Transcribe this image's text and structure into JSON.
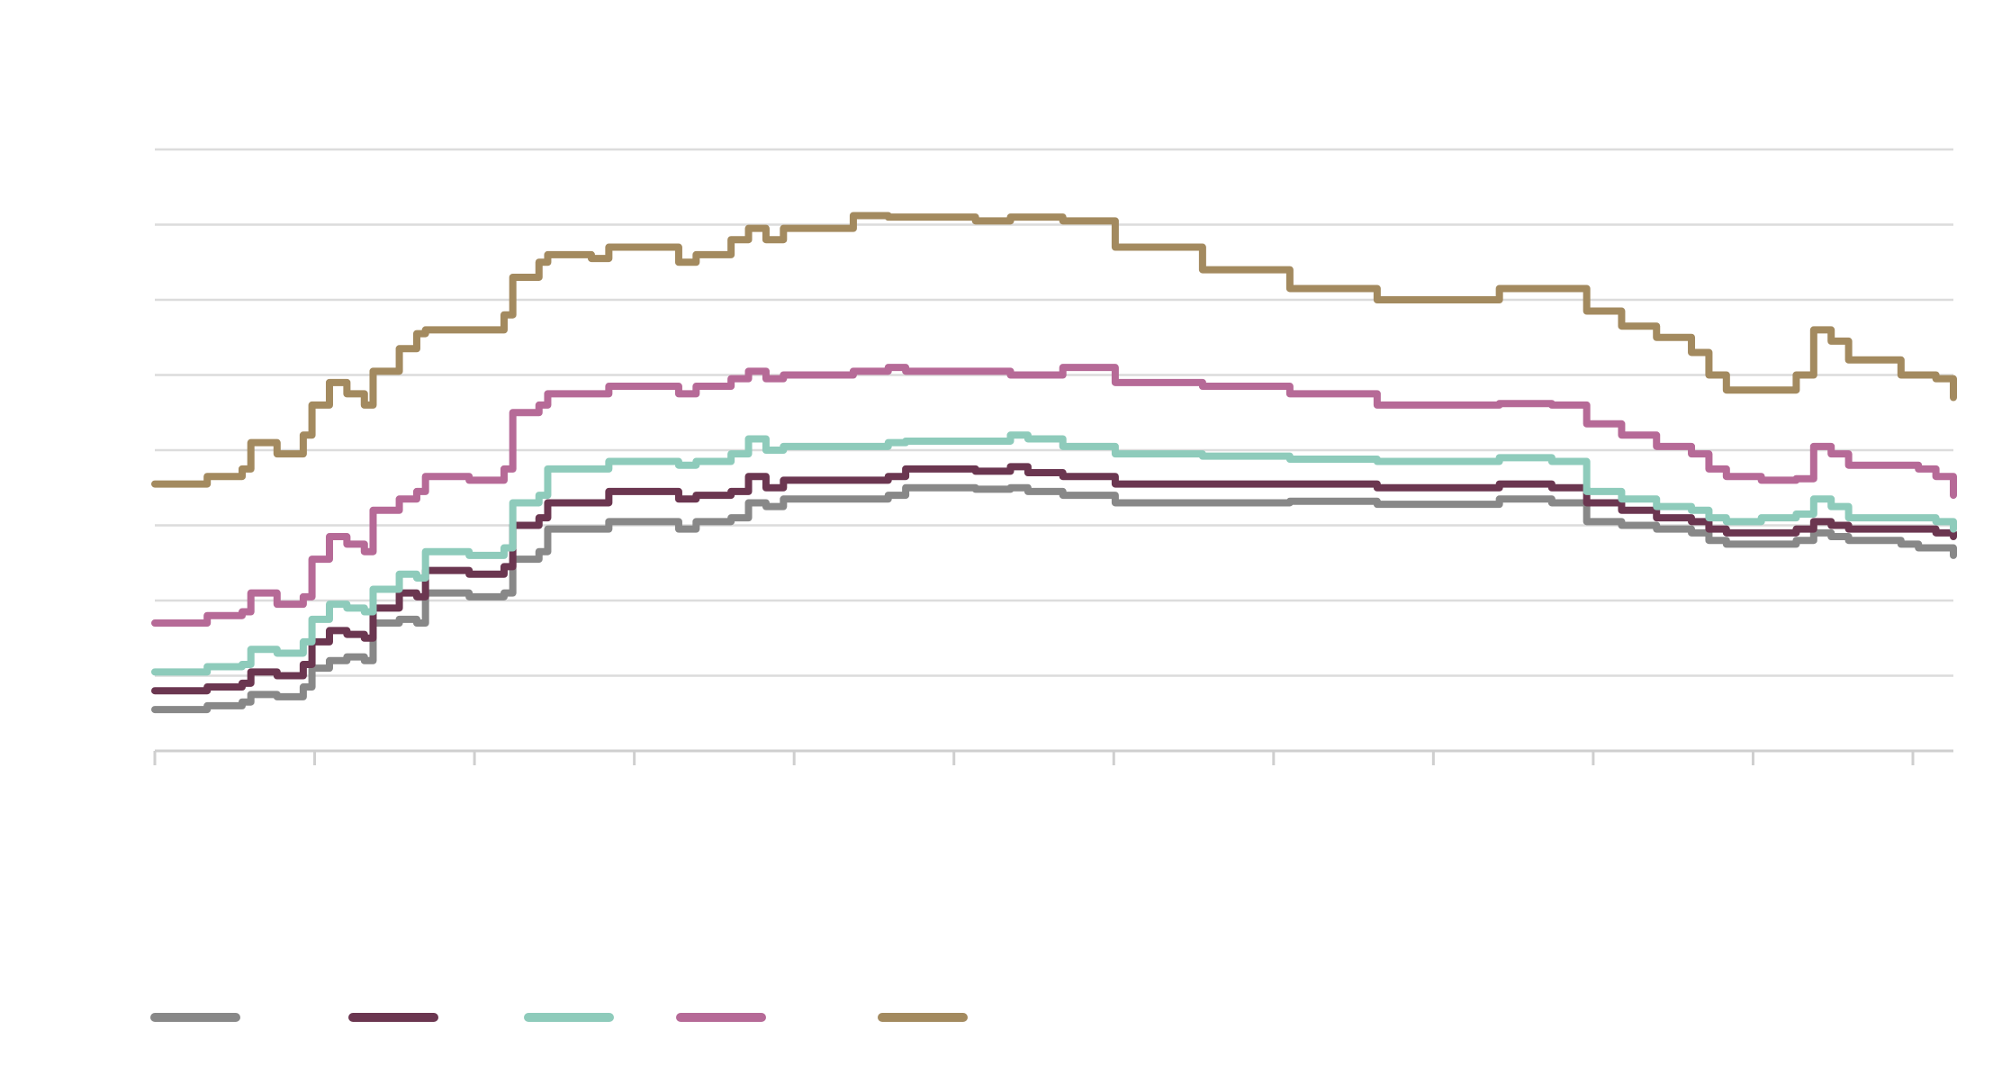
{
  "chart_data": {
    "type": "line",
    "title": "",
    "xlabel": "",
    "ylabel": "",
    "ylim": [
      0,
      8
    ],
    "y_ticks": [
      0,
      1,
      2,
      3,
      4,
      5,
      6,
      7,
      8
    ],
    "x_tick_count": 12,
    "grid": true,
    "legend_position": "bottom-left",
    "series": [
      {
        "color": "#888888",
        "values": [
          [
            0,
            0.55
          ],
          [
            2,
            0.55
          ],
          [
            3,
            0.6
          ],
          [
            5,
            0.65
          ],
          [
            5.5,
            0.75
          ],
          [
            7,
            0.72
          ],
          [
            8.5,
            0.85
          ],
          [
            9,
            1.1
          ],
          [
            10,
            1.2
          ],
          [
            11,
            1.25
          ],
          [
            12,
            1.2
          ],
          [
            12.5,
            1.7
          ],
          [
            14,
            1.75
          ],
          [
            15,
            1.7
          ],
          [
            15.5,
            2.1
          ],
          [
            18,
            2.05
          ],
          [
            19,
            2.05
          ],
          [
            20,
            2.1
          ],
          [
            20.5,
            2.55
          ],
          [
            22,
            2.65
          ],
          [
            22.5,
            2.95
          ],
          [
            25,
            2.95
          ],
          [
            26,
            3.05
          ],
          [
            29,
            3.05
          ],
          [
            30,
            2.95
          ],
          [
            31,
            3.05
          ],
          [
            33,
            3.1
          ],
          [
            34,
            3.3
          ],
          [
            35,
            3.25
          ],
          [
            36,
            3.35
          ],
          [
            40,
            3.35
          ],
          [
            42,
            3.4
          ],
          [
            43,
            3.5
          ],
          [
            47,
            3.48
          ],
          [
            49,
            3.5
          ],
          [
            50,
            3.45
          ],
          [
            52,
            3.4
          ],
          [
            55,
            3.3
          ],
          [
            60,
            3.3
          ],
          [
            65,
            3.32
          ],
          [
            70,
            3.28
          ],
          [
            74,
            3.28
          ],
          [
            77,
            3.35
          ],
          [
            80,
            3.3
          ],
          [
            82,
            3.05
          ],
          [
            84,
            3.0
          ],
          [
            86,
            2.95
          ],
          [
            88,
            2.9
          ],
          [
            89,
            2.8
          ],
          [
            90,
            2.75
          ],
          [
            92,
            2.75
          ],
          [
            94,
            2.8
          ],
          [
            95,
            2.9
          ],
          [
            96,
            2.85
          ],
          [
            97,
            2.8
          ],
          [
            100,
            2.75
          ],
          [
            101,
            2.7
          ],
          [
            102,
            2.7
          ],
          [
            103,
            2.6
          ]
        ]
      },
      {
        "color": "#6b3650",
        "values": [
          [
            0,
            0.8
          ],
          [
            2,
            0.8
          ],
          [
            3,
            0.85
          ],
          [
            5,
            0.9
          ],
          [
            5.5,
            1.05
          ],
          [
            7,
            1.0
          ],
          [
            8.5,
            1.15
          ],
          [
            9,
            1.45
          ],
          [
            10,
            1.6
          ],
          [
            11,
            1.55
          ],
          [
            12,
            1.5
          ],
          [
            12.5,
            1.9
          ],
          [
            14,
            2.1
          ],
          [
            15,
            2.05
          ],
          [
            15.5,
            2.4
          ],
          [
            18,
            2.35
          ],
          [
            19,
            2.35
          ],
          [
            20,
            2.45
          ],
          [
            20.5,
            3.0
          ],
          [
            22,
            3.1
          ],
          [
            22.5,
            3.3
          ],
          [
            25,
            3.3
          ],
          [
            26,
            3.45
          ],
          [
            29,
            3.45
          ],
          [
            30,
            3.35
          ],
          [
            31,
            3.4
          ],
          [
            33,
            3.45
          ],
          [
            34,
            3.65
          ],
          [
            35,
            3.5
          ],
          [
            36,
            3.6
          ],
          [
            40,
            3.6
          ],
          [
            42,
            3.65
          ],
          [
            43,
            3.75
          ],
          [
            47,
            3.72
          ],
          [
            49,
            3.78
          ],
          [
            50,
            3.7
          ],
          [
            52,
            3.65
          ],
          [
            55,
            3.55
          ],
          [
            60,
            3.55
          ],
          [
            65,
            3.55
          ],
          [
            70,
            3.5
          ],
          [
            74,
            3.5
          ],
          [
            77,
            3.55
          ],
          [
            80,
            3.5
          ],
          [
            82,
            3.3
          ],
          [
            84,
            3.2
          ],
          [
            86,
            3.1
          ],
          [
            88,
            3.05
          ],
          [
            89,
            2.95
          ],
          [
            90,
            2.9
          ],
          [
            92,
            2.9
          ],
          [
            94,
            2.95
          ],
          [
            95,
            3.05
          ],
          [
            96,
            3.0
          ],
          [
            97,
            2.95
          ],
          [
            100,
            2.95
          ],
          [
            101,
            2.95
          ],
          [
            102,
            2.9
          ],
          [
            103,
            2.85
          ]
        ]
      },
      {
        "color": "#8ecbbb",
        "values": [
          [
            0,
            1.05
          ],
          [
            2,
            1.05
          ],
          [
            3,
            1.12
          ],
          [
            5,
            1.15
          ],
          [
            5.5,
            1.35
          ],
          [
            7,
            1.3
          ],
          [
            8.5,
            1.45
          ],
          [
            9,
            1.75
          ],
          [
            10,
            1.95
          ],
          [
            11,
            1.9
          ],
          [
            12,
            1.85
          ],
          [
            12.5,
            2.15
          ],
          [
            14,
            2.35
          ],
          [
            15,
            2.3
          ],
          [
            15.5,
            2.65
          ],
          [
            18,
            2.6
          ],
          [
            19,
            2.6
          ],
          [
            20,
            2.7
          ],
          [
            20.5,
            3.3
          ],
          [
            22,
            3.4
          ],
          [
            22.5,
            3.75
          ],
          [
            25,
            3.75
          ],
          [
            26,
            3.85
          ],
          [
            29,
            3.85
          ],
          [
            30,
            3.8
          ],
          [
            31,
            3.85
          ],
          [
            33,
            3.95
          ],
          [
            34,
            4.15
          ],
          [
            35,
            4.0
          ],
          [
            36,
            4.05
          ],
          [
            40,
            4.05
          ],
          [
            42,
            4.1
          ],
          [
            43,
            4.12
          ],
          [
            47,
            4.12
          ],
          [
            49,
            4.2
          ],
          [
            50,
            4.15
          ],
          [
            52,
            4.05
          ],
          [
            55,
            3.95
          ],
          [
            60,
            3.92
          ],
          [
            65,
            3.88
          ],
          [
            70,
            3.85
          ],
          [
            74,
            3.85
          ],
          [
            77,
            3.9
          ],
          [
            80,
            3.85
          ],
          [
            82,
            3.45
          ],
          [
            84,
            3.35
          ],
          [
            86,
            3.25
          ],
          [
            88,
            3.2
          ],
          [
            89,
            3.1
          ],
          [
            90,
            3.05
          ],
          [
            92,
            3.1
          ],
          [
            94,
            3.15
          ],
          [
            95,
            3.35
          ],
          [
            96,
            3.25
          ],
          [
            97,
            3.1
          ],
          [
            100,
            3.1
          ],
          [
            101,
            3.1
          ],
          [
            102,
            3.05
          ],
          [
            103,
            2.95
          ]
        ]
      },
      {
        "color": "#b66a97",
        "values": [
          [
            0,
            1.7
          ],
          [
            2,
            1.7
          ],
          [
            3,
            1.8
          ],
          [
            5,
            1.85
          ],
          [
            5.5,
            2.1
          ],
          [
            7,
            1.95
          ],
          [
            8.5,
            2.05
          ],
          [
            9,
            2.55
          ],
          [
            10,
            2.85
          ],
          [
            11,
            2.75
          ],
          [
            12,
            2.65
          ],
          [
            12.5,
            3.2
          ],
          [
            14,
            3.35
          ],
          [
            15,
            3.45
          ],
          [
            15.5,
            3.65
          ],
          [
            18,
            3.6
          ],
          [
            19,
            3.6
          ],
          [
            20,
            3.75
          ],
          [
            20.5,
            4.5
          ],
          [
            22,
            4.6
          ],
          [
            22.5,
            4.75
          ],
          [
            25,
            4.75
          ],
          [
            26,
            4.85
          ],
          [
            29,
            4.85
          ],
          [
            30,
            4.75
          ],
          [
            31,
            4.85
          ],
          [
            33,
            4.95
          ],
          [
            34,
            5.05
          ],
          [
            35,
            4.95
          ],
          [
            36,
            5.0
          ],
          [
            40,
            5.05
          ],
          [
            42,
            5.1
          ],
          [
            43,
            5.05
          ],
          [
            47,
            5.05
          ],
          [
            49,
            5.0
          ],
          [
            50,
            5.0
          ],
          [
            52,
            5.1
          ],
          [
            55,
            4.9
          ],
          [
            60,
            4.85
          ],
          [
            65,
            4.75
          ],
          [
            70,
            4.6
          ],
          [
            74,
            4.6
          ],
          [
            77,
            4.62
          ],
          [
            80,
            4.6
          ],
          [
            82,
            4.35
          ],
          [
            84,
            4.2
          ],
          [
            86,
            4.05
          ],
          [
            88,
            3.95
          ],
          [
            89,
            3.75
          ],
          [
            90,
            3.65
          ],
          [
            92,
            3.6
          ],
          [
            94,
            3.62
          ],
          [
            95,
            4.05
          ],
          [
            96,
            3.95
          ],
          [
            97,
            3.8
          ],
          [
            100,
            3.8
          ],
          [
            101,
            3.75
          ],
          [
            102,
            3.65
          ],
          [
            103,
            3.4
          ]
        ]
      },
      {
        "color": "#a38a5f",
        "values": [
          [
            0,
            3.55
          ],
          [
            2,
            3.55
          ],
          [
            3,
            3.65
          ],
          [
            5,
            3.75
          ],
          [
            5.5,
            4.1
          ],
          [
            7,
            3.95
          ],
          [
            8.5,
            4.2
          ],
          [
            9,
            4.6
          ],
          [
            10,
            4.9
          ],
          [
            11,
            4.75
          ],
          [
            12,
            4.6
          ],
          [
            12.5,
            5.05
          ],
          [
            14,
            5.35
          ],
          [
            15,
            5.55
          ],
          [
            15.5,
            5.6
          ],
          [
            18,
            5.6
          ],
          [
            19,
            5.6
          ],
          [
            20,
            5.8
          ],
          [
            20.5,
            6.3
          ],
          [
            22,
            6.5
          ],
          [
            22.5,
            6.6
          ],
          [
            25,
            6.55
          ],
          [
            26,
            6.7
          ],
          [
            29,
            6.7
          ],
          [
            30,
            6.5
          ],
          [
            31,
            6.6
          ],
          [
            33,
            6.8
          ],
          [
            34,
            6.95
          ],
          [
            35,
            6.8
          ],
          [
            36,
            6.95
          ],
          [
            40,
            7.12
          ],
          [
            42,
            7.1
          ],
          [
            43,
            7.1
          ],
          [
            47,
            7.05
          ],
          [
            49,
            7.1
          ],
          [
            50,
            7.1
          ],
          [
            52,
            7.05
          ],
          [
            55,
            6.7
          ],
          [
            60,
            6.4
          ],
          [
            65,
            6.15
          ],
          [
            70,
            6.0
          ],
          [
            74,
            6.0
          ],
          [
            77,
            6.15
          ],
          [
            80,
            6.15
          ],
          [
            82,
            5.85
          ],
          [
            84,
            5.65
          ],
          [
            86,
            5.5
          ],
          [
            88,
            5.3
          ],
          [
            89,
            5.0
          ],
          [
            90,
            4.8
          ],
          [
            92,
            4.8
          ],
          [
            94,
            5.0
          ],
          [
            95,
            5.6
          ],
          [
            96,
            5.45
          ],
          [
            97,
            5.2
          ],
          [
            100,
            5.0
          ],
          [
            101,
            5.0
          ],
          [
            102,
            4.95
          ],
          [
            103,
            4.7
          ]
        ]
      }
    ]
  }
}
